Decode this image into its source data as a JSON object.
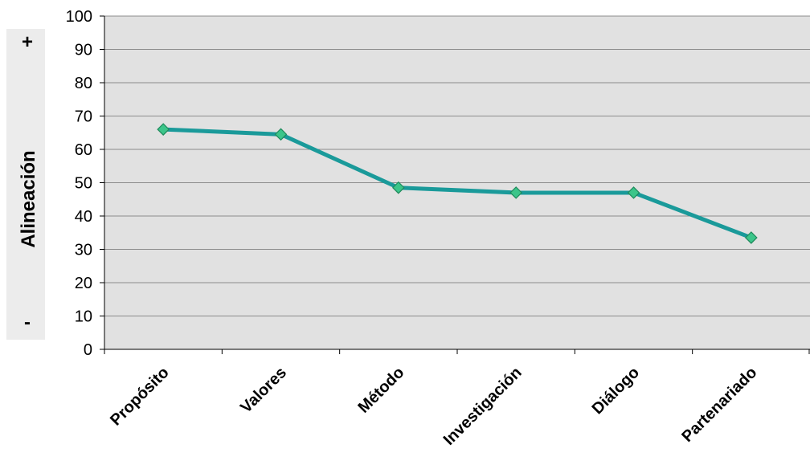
{
  "chart_data": {
    "type": "line",
    "title": "",
    "xlabel": "",
    "ylabel": "Alineación",
    "ylabel_plus": "+",
    "ylabel_minus": "-",
    "categories": [
      "Propósito",
      "Valores",
      "Método",
      "Investigación",
      "Diálogo",
      "Partenariado"
    ],
    "series": [
      {
        "values": [
          66,
          64.5,
          48.5,
          47,
          47,
          33.5
        ]
      }
    ],
    "ylim": [
      0,
      100
    ],
    "yticks": [
      0,
      10,
      20,
      30,
      40,
      50,
      60,
      70,
      80,
      90,
      100
    ],
    "grid": true,
    "colors": {
      "plot_background": "#e1e1e1",
      "line": "#1a9a9a",
      "marker_fill": "#3cc58a",
      "marker_stroke": "#1f8a5c",
      "gridline": "#8c8c8c",
      "ylabel_band": "#ececec"
    }
  }
}
